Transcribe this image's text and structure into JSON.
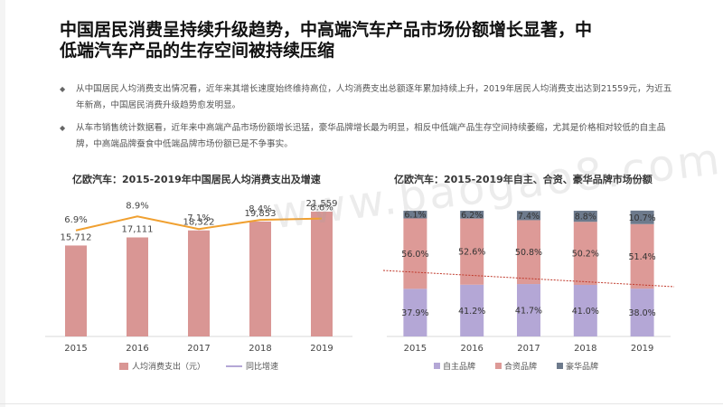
{
  "slide": {
    "title": "中国居民消费呈持续升级趋势，中高端汽车产品市场份额增长显著，中低端汽车产品的生存空间被持续压缩",
    "bullets": [
      "从中国居民人均消费支出情况看，近年来其增长速度始终维持高位，人均消费支出总额逐年累加持续上升，2019年居民人均消费支出达到21559元，为近五年新高，中国居民消费升级趋势愈发明显。",
      "从车市销售统计数据看，近年来中高端产品市场份额增长迅猛，豪华品牌增长最为明显，相反中低端产品生存空间持续萎缩，尤其是价格相对较低的自主品牌，中高端品牌蚕食中低端品牌市场份额已是不争事实。"
    ],
    "bullet_symbol": "◆",
    "watermark": "www.baogao8.com"
  },
  "chart_data": [
    {
      "type": "bar",
      "title": "亿欧汽车：2015-2019年中国居民人均消费支出及增速",
      "categories": [
        "2015",
        "2016",
        "2017",
        "2018",
        "2019"
      ],
      "series": [
        {
          "name": "人均消费支出（元）",
          "type": "bar",
          "values": [
            15712,
            17111,
            18322,
            19853,
            21559
          ],
          "labels": [
            "15,712",
            "17,111",
            "18,322",
            "19,853",
            "21,559"
          ],
          "color": "#d99694"
        },
        {
          "name": "同比增速",
          "type": "line",
          "values": [
            6.9,
            8.9,
            7.1,
            8.4,
            8.6
          ],
          "labels": [
            "6.9%",
            "8.9%",
            "7.1%",
            "8.4%",
            "8.6%"
          ],
          "color": "#f0a030",
          "legend_color": "#b4a7d6"
        }
      ],
      "legend_position": "bottom",
      "grid": false
    },
    {
      "type": "bar",
      "stacked": true,
      "title": "亿欧汽车：2015-2019年自主、合资、豪华品牌市场份额",
      "categories": [
        "2015",
        "2016",
        "2017",
        "2018",
        "2019"
      ],
      "series": [
        {
          "name": "自主品牌",
          "values": [
            37.9,
            41.2,
            41.7,
            41.0,
            38.0
          ],
          "labels": [
            "37.9%",
            "41.2%",
            "41.7%",
            "41.0%",
            "38.0%"
          ],
          "color": "#b4a7d6"
        },
        {
          "name": "合资品牌",
          "values": [
            56.0,
            52.6,
            50.8,
            50.2,
            51.4
          ],
          "labels": [
            "56.0%",
            "52.6%",
            "50.8%",
            "50.2%",
            "51.4%"
          ],
          "color": "#dd9a97"
        },
        {
          "name": "豪华品牌",
          "values": [
            6.1,
            6.2,
            7.4,
            8.8,
            10.7
          ],
          "labels": [
            "6.1%",
            "6.2%",
            "7.4%",
            "8.8%",
            "10.7%"
          ],
          "color": "#6d7a8c"
        }
      ],
      "legend_position": "bottom",
      "grid": false,
      "trend_line_color": "#c0392b"
    }
  ]
}
